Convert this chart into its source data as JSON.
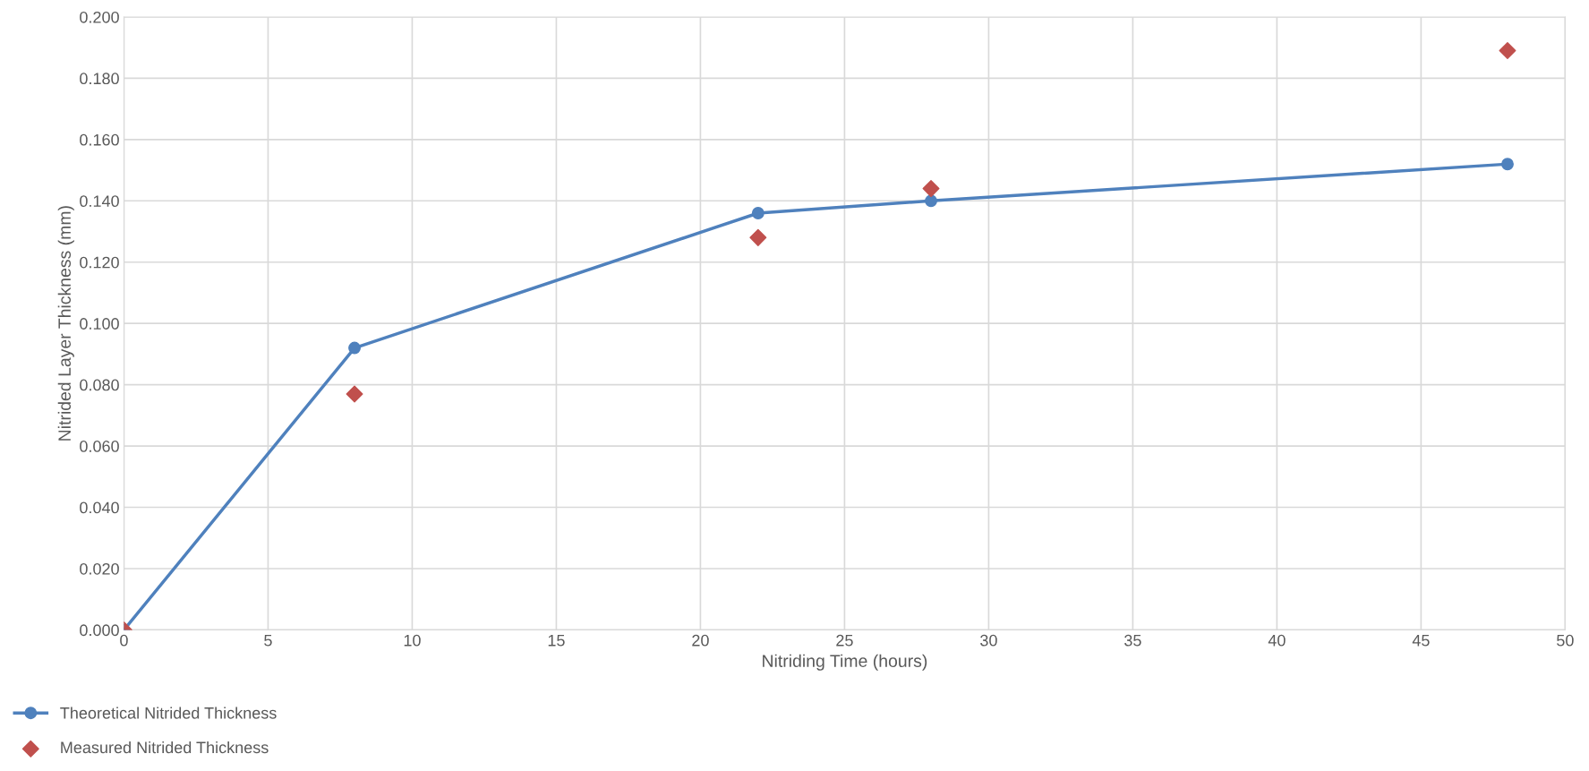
{
  "chart_data": {
    "type": "line",
    "xlabel": "Nitriding Time (hours)",
    "ylabel": "Nitrided Layer Thickness (mm)",
    "xlim": [
      0,
      50
    ],
    "xticks": [
      0,
      5,
      10,
      15,
      20,
      25,
      30,
      35,
      40,
      45,
      50
    ],
    "ylim": [
      0,
      0.2
    ],
    "yticks": [
      {
        "value": 0,
        "label": "0.000"
      },
      {
        "value": 0.02,
        "label": "0.020"
      },
      {
        "value": 0.04,
        "label": "0.040"
      },
      {
        "value": 0.06,
        "label": "0.060"
      },
      {
        "value": 0.08,
        "label": "0.080"
      },
      {
        "value": 0.1,
        "label": "0.100"
      },
      {
        "value": 0.12,
        "label": "0.120"
      },
      {
        "value": 0.14,
        "label": "0.140"
      },
      {
        "value": 0.16,
        "label": "0.160"
      },
      {
        "value": 0.18,
        "label": "0.180"
      },
      {
        "value": 0.2,
        "label": "0.200"
      }
    ],
    "grid": true,
    "legend": "bottom left",
    "series": [
      {
        "name": "Theoretical Nitrided Thickness",
        "marker": "circle",
        "color": "#4f81bd",
        "x": [
          0,
          8,
          22,
          28,
          48
        ],
        "values": [
          0,
          0.092,
          0.136,
          0.14,
          0.152
        ]
      },
      {
        "name": "Measured Nitrided Thickness",
        "type": "scatter",
        "marker": "diamond",
        "color": "#c0504d",
        "x": [
          0,
          8,
          22,
          28,
          48
        ],
        "values": [
          0,
          0.077,
          0.128,
          0.144,
          0.189
        ]
      }
    ]
  }
}
